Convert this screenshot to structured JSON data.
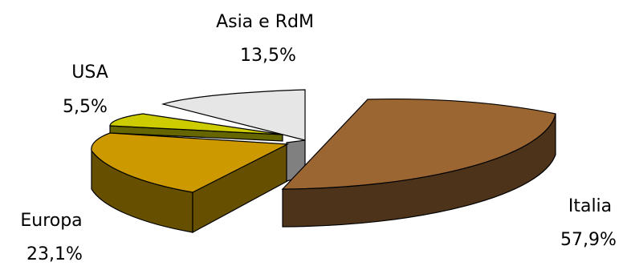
{
  "chart_data": {
    "type": "pie",
    "three_d": true,
    "exploded": true,
    "legend": "none",
    "categories": [
      "Italia",
      "Europa",
      "USA",
      "Asia e RdM"
    ],
    "values": [
      57.9,
      23.1,
      5.5,
      13.5
    ],
    "value_labels": [
      "57,9%",
      "23,1%",
      "5,5%",
      "13,5%"
    ],
    "slice_colors": {
      "Italia": {
        "top": "#9c6633",
        "side": "#4d3319"
      },
      "Europa": {
        "top": "#cc9900",
        "side": "#665000"
      },
      "USA": {
        "top": "#cccc00",
        "side": "#666600"
      },
      "Asia e RdM": {
        "top": "#e6e6e6",
        "side": "#808080"
      }
    }
  }
}
